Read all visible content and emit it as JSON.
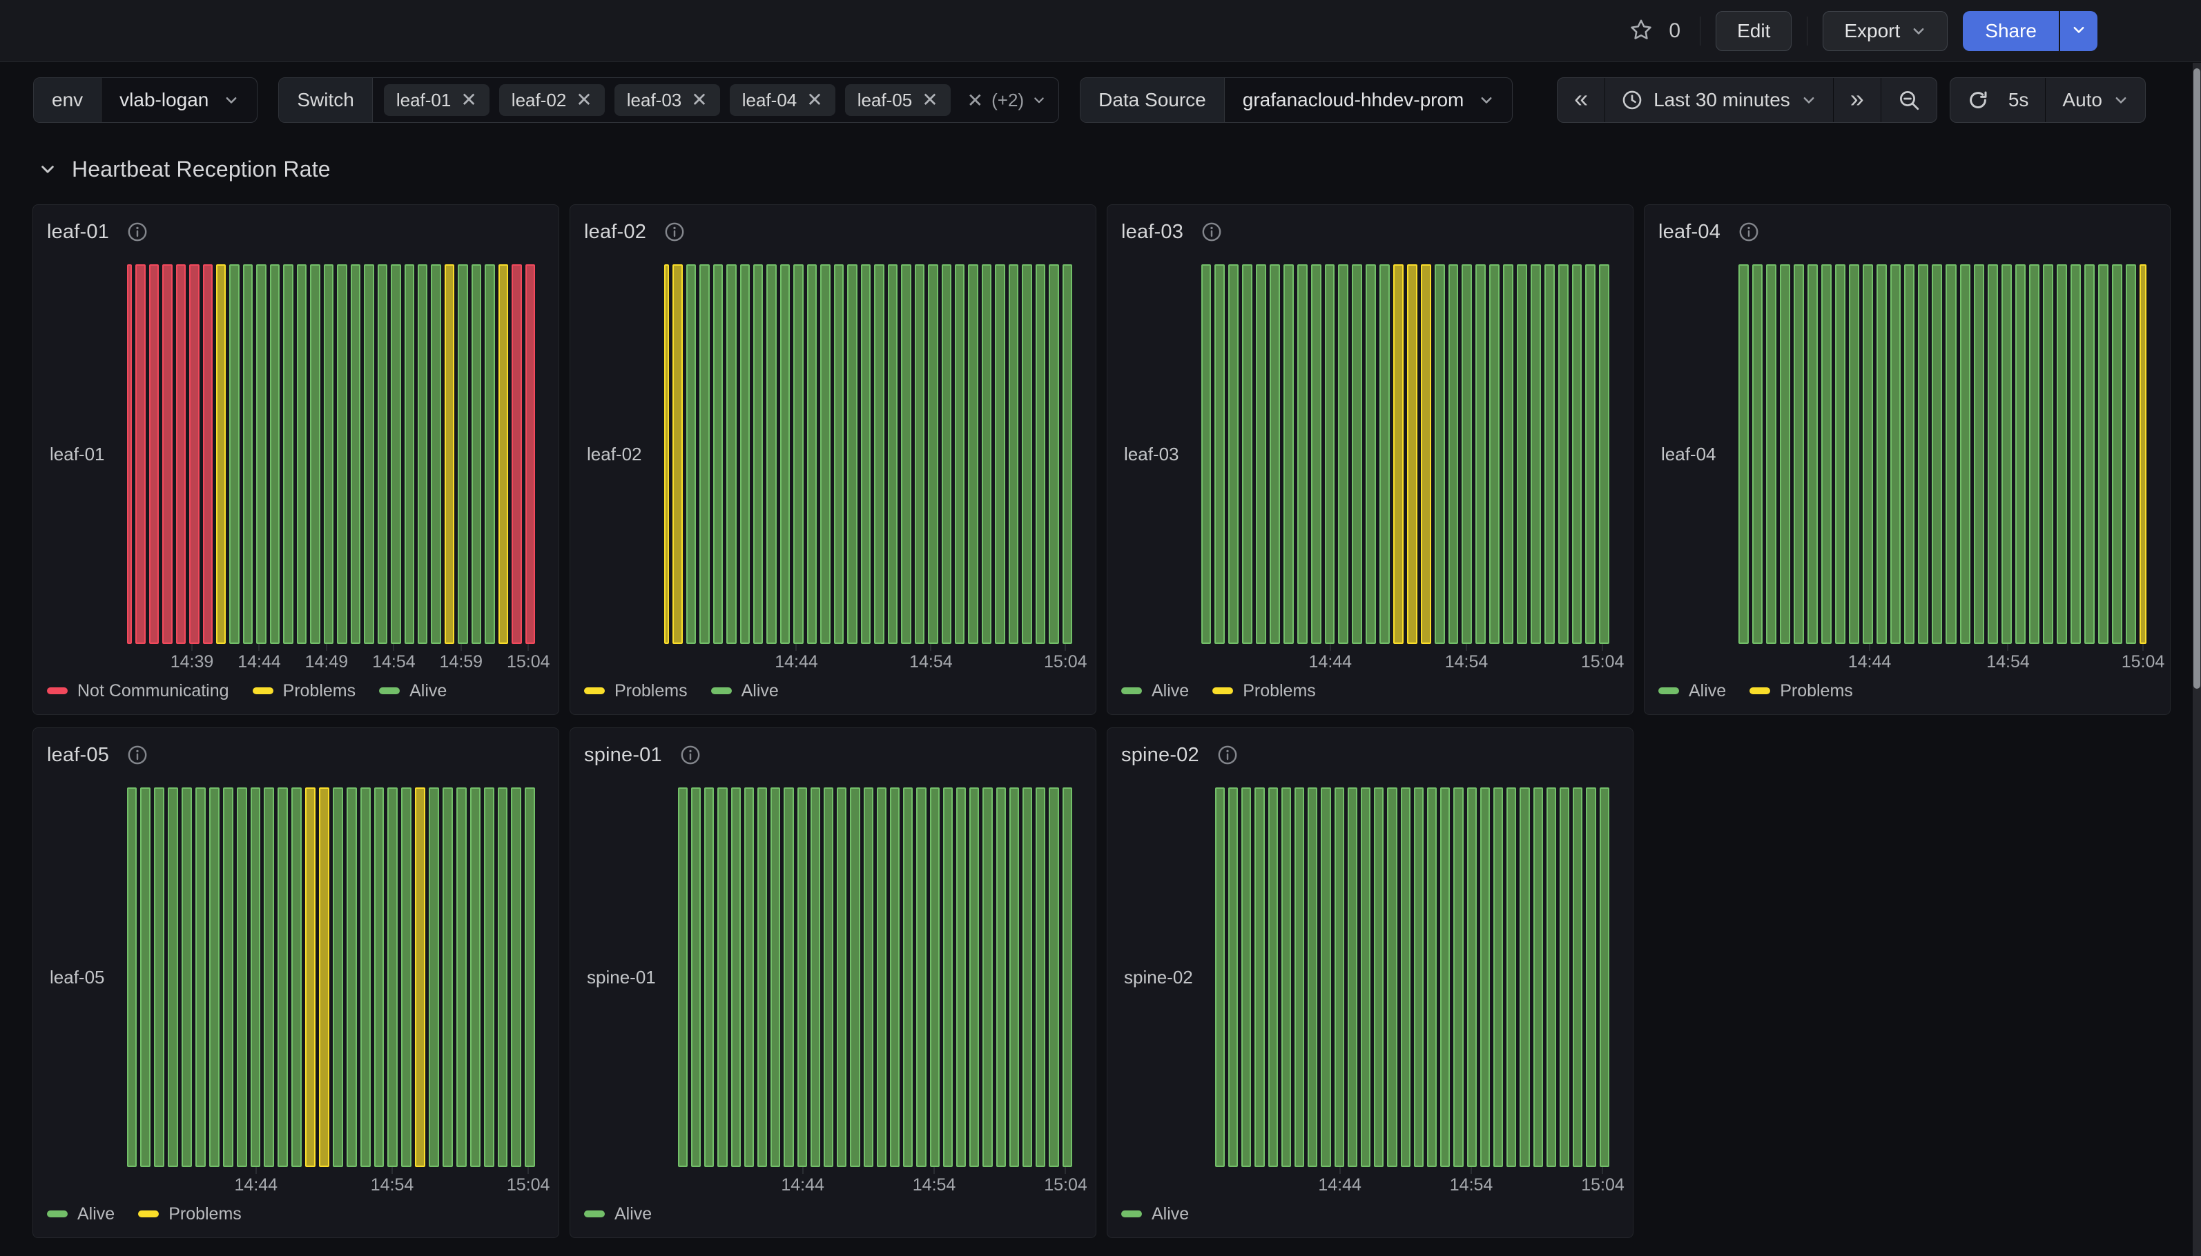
{
  "topbar": {
    "star_count": "0",
    "edit_label": "Edit",
    "export_label": "Export",
    "share_label": "Share"
  },
  "filters": {
    "env": {
      "label": "env",
      "value": "vlab-logan"
    },
    "switch": {
      "label": "Switch",
      "tags": [
        "leaf-01",
        "leaf-02",
        "leaf-03",
        "leaf-04",
        "leaf-05"
      ],
      "more_label": "(+2)"
    },
    "datasource": {
      "label": "Data Source",
      "value": "grafanacloud-hhdev-prom"
    }
  },
  "timebar": {
    "range_label": "Last 30 minutes",
    "refresh_interval": "5s",
    "auto_label": "Auto"
  },
  "section": {
    "title": "Heartbeat Reception Rate"
  },
  "state_key": {
    "A": "Alive",
    "P": "Problems",
    "N": "Not Communicating"
  },
  "state_colors": {
    "A": {
      "line": "#73BF69",
      "fill": "#568C4A"
    },
    "P": {
      "line": "#FADE2A",
      "fill": "#B3A125"
    },
    "N": {
      "line": "#F2495C",
      "fill": "#BE4250"
    }
  },
  "chart_data": [
    {
      "type": "state-timeline",
      "title": "leaf-01",
      "ylabel": "leaf-01",
      "first_partial": true,
      "last_partial": false,
      "ticks": [
        {
          "label": "14:39",
          "slot": 4
        },
        {
          "label": "14:44",
          "slot": 9
        },
        {
          "label": "14:49",
          "slot": 14
        },
        {
          "label": "14:54",
          "slot": 19
        },
        {
          "label": "14:59",
          "slot": 24
        },
        {
          "label": "15:04",
          "slot": 29
        }
      ],
      "states": [
        "N",
        "N",
        "N",
        "N",
        "N",
        "N",
        "P",
        "A",
        "A",
        "A",
        "A",
        "A",
        "A",
        "A",
        "A",
        "A",
        "A",
        "A",
        "A",
        "A",
        "A",
        "A",
        "A",
        "P",
        "A",
        "A",
        "A",
        "P",
        "N",
        "N"
      ],
      "legend": [
        {
          "label": "Not Communicating",
          "state": "N"
        },
        {
          "label": "Problems",
          "state": "P"
        },
        {
          "label": "Alive",
          "state": "A"
        }
      ]
    },
    {
      "type": "state-timeline",
      "title": "leaf-02",
      "ylabel": "leaf-02",
      "first_partial": true,
      "last_partial": false,
      "ticks": [
        {
          "label": "14:44",
          "slot": 9
        },
        {
          "label": "14:54",
          "slot": 19
        },
        {
          "label": "15:04",
          "slot": 29
        }
      ],
      "states": [
        "P",
        "A",
        "A",
        "A",
        "A",
        "A",
        "A",
        "A",
        "A",
        "A",
        "A",
        "A",
        "A",
        "A",
        "A",
        "A",
        "A",
        "A",
        "A",
        "A",
        "A",
        "A",
        "A",
        "A",
        "A",
        "A",
        "A",
        "A",
        "A",
        "A"
      ],
      "legend": [
        {
          "label": "Problems",
          "state": "P"
        },
        {
          "label": "Alive",
          "state": "A"
        }
      ]
    },
    {
      "type": "state-timeline",
      "title": "leaf-03",
      "ylabel": "leaf-03",
      "first_partial": false,
      "last_partial": false,
      "ticks": [
        {
          "label": "14:44",
          "slot": 9
        },
        {
          "label": "14:54",
          "slot": 19
        },
        {
          "label": "15:04",
          "slot": 29
        }
      ],
      "states": [
        "A",
        "A",
        "A",
        "A",
        "A",
        "A",
        "A",
        "A",
        "A",
        "A",
        "A",
        "A",
        "A",
        "A",
        "P",
        "P",
        "P",
        "A",
        "A",
        "A",
        "A",
        "A",
        "A",
        "A",
        "A",
        "A",
        "A",
        "A",
        "A",
        "A"
      ],
      "legend": [
        {
          "label": "Alive",
          "state": "A"
        },
        {
          "label": "Problems",
          "state": "P"
        }
      ]
    },
    {
      "type": "state-timeline",
      "title": "leaf-04",
      "ylabel": "leaf-04",
      "first_partial": false,
      "last_partial": true,
      "ticks": [
        {
          "label": "14:44",
          "slot": 9
        },
        {
          "label": "14:54",
          "slot": 19
        },
        {
          "label": "15:04",
          "slot": 29
        }
      ],
      "states": [
        "A",
        "A",
        "A",
        "A",
        "A",
        "A",
        "A",
        "A",
        "A",
        "A",
        "A",
        "A",
        "A",
        "A",
        "A",
        "A",
        "A",
        "A",
        "A",
        "A",
        "A",
        "A",
        "A",
        "A",
        "A",
        "A",
        "A",
        "A",
        "A",
        "P"
      ],
      "legend": [
        {
          "label": "Alive",
          "state": "A"
        },
        {
          "label": "Problems",
          "state": "P"
        }
      ]
    },
    {
      "type": "state-timeline",
      "title": "leaf-05",
      "ylabel": "leaf-05",
      "first_partial": false,
      "last_partial": false,
      "ticks": [
        {
          "label": "14:44",
          "slot": 9
        },
        {
          "label": "14:54",
          "slot": 19
        },
        {
          "label": "15:04",
          "slot": 29
        }
      ],
      "states": [
        "A",
        "A",
        "A",
        "A",
        "A",
        "A",
        "A",
        "A",
        "A",
        "A",
        "A",
        "A",
        "A",
        "P",
        "P",
        "A",
        "A",
        "A",
        "A",
        "A",
        "A",
        "P",
        "A",
        "A",
        "A",
        "A",
        "A",
        "A",
        "A",
        "A"
      ],
      "legend": [
        {
          "label": "Alive",
          "state": "A"
        },
        {
          "label": "Problems",
          "state": "P"
        }
      ]
    },
    {
      "type": "state-timeline",
      "title": "spine-01",
      "ylabel": "spine-01",
      "first_partial": false,
      "last_partial": false,
      "ticks": [
        {
          "label": "14:44",
          "slot": 9
        },
        {
          "label": "14:54",
          "slot": 19
        },
        {
          "label": "15:04",
          "slot": 29
        }
      ],
      "states": [
        "A",
        "A",
        "A",
        "A",
        "A",
        "A",
        "A",
        "A",
        "A",
        "A",
        "A",
        "A",
        "A",
        "A",
        "A",
        "A",
        "A",
        "A",
        "A",
        "A",
        "A",
        "A",
        "A",
        "A",
        "A",
        "A",
        "A",
        "A",
        "A",
        "A"
      ],
      "legend": [
        {
          "label": "Alive",
          "state": "A"
        }
      ]
    },
    {
      "type": "state-timeline",
      "title": "spine-02",
      "ylabel": "spine-02",
      "first_partial": false,
      "last_partial": false,
      "ticks": [
        {
          "label": "14:44",
          "slot": 9
        },
        {
          "label": "14:54",
          "slot": 19
        },
        {
          "label": "15:04",
          "slot": 29
        }
      ],
      "states": [
        "A",
        "A",
        "A",
        "A",
        "A",
        "A",
        "A",
        "A",
        "A",
        "A",
        "A",
        "A",
        "A",
        "A",
        "A",
        "A",
        "A",
        "A",
        "A",
        "A",
        "A",
        "A",
        "A",
        "A",
        "A",
        "A",
        "A",
        "A",
        "A",
        "A"
      ],
      "legend": [
        {
          "label": "Alive",
          "state": "A"
        }
      ]
    }
  ]
}
